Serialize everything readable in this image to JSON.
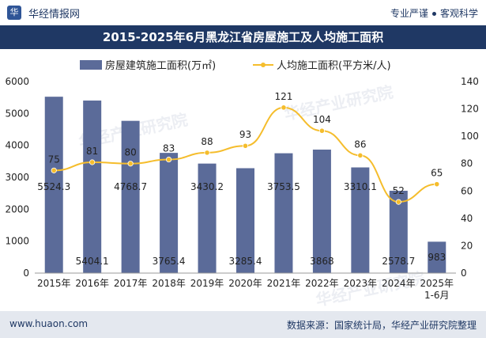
{
  "header": {
    "brand": "华经情报网",
    "slogan_left": "专业严谨",
    "slogan_right": "客观科学"
  },
  "title": "2015-2025年6月黑龙江省房屋施工及人均施工面积",
  "legend": {
    "bar": "房屋建筑施工面积(万㎡)",
    "line": "人均施工面积(平方米/人)"
  },
  "footer": {
    "site": "www.huaon.com",
    "source": "数据来源：国家统计局，华经产业研究院整理"
  },
  "watermark": "华经产业研究院",
  "colors": {
    "bar": "#5b6b99",
    "line": "#f5bd2c",
    "title_bg": "#1f3864",
    "footer_bg": "#e4e8ef"
  },
  "chart_data": {
    "type": "bar",
    "categories": [
      "2015年",
      "2016年",
      "2017年",
      "2018年",
      "2019年",
      "2020年",
      "2021年",
      "2022年",
      "2023年",
      "2024年",
      "2025年\n1-6月"
    ],
    "series": [
      {
        "name": "房屋建筑施工面积(万㎡)",
        "type": "bar",
        "axis": "left",
        "values": [
          5524.3,
          5404.1,
          4768.7,
          3765.4,
          3430.2,
          3285.4,
          3753.5,
          3868,
          3310.1,
          2578.7,
          983
        ],
        "labels": [
          "5524.3",
          "5404.1",
          "4768.7",
          "3765.4",
          "3430.2",
          "3285.4",
          "3753.5",
          "3868",
          "3310.1",
          "2578.7",
          "983"
        ]
      },
      {
        "name": "人均施工面积(平方米/人)",
        "type": "line",
        "axis": "right",
        "values": [
          75,
          81,
          80,
          83,
          88,
          93,
          121,
          104,
          86,
          52,
          65
        ],
        "labels": [
          "75",
          "81",
          "80",
          "83",
          "88",
          "93",
          "121",
          "104",
          "86",
          "52",
          "65"
        ]
      }
    ],
    "y_left": {
      "min": 0,
      "max": 6000,
      "ticks": [
        "0",
        "1000",
        "2000",
        "3000",
        "4000",
        "5000",
        "6000"
      ]
    },
    "y_right": {
      "min": 0,
      "max": 140,
      "ticks": [
        "0",
        "20",
        "40",
        "60",
        "80",
        "100",
        "120",
        "140"
      ]
    },
    "legend_position": "top-center",
    "grid": false
  }
}
